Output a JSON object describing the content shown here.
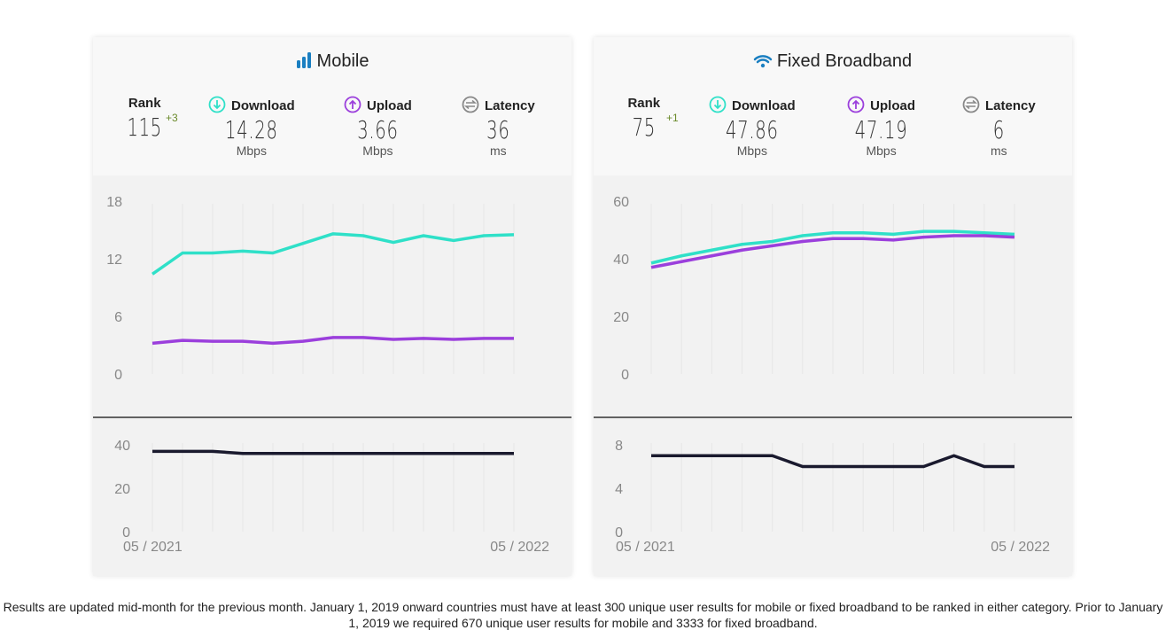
{
  "cards": [
    {
      "title": "Mobile",
      "icon": "signal-bars-icon",
      "rank_label": "Rank",
      "rank": "115",
      "rank_change": "+3",
      "download_label": "Download",
      "download": "14.28",
      "download_unit": "Mbps",
      "upload_label": "Upload",
      "upload": "3.66",
      "upload_unit": "Mbps",
      "latency_label": "Latency",
      "latency": "36",
      "latency_unit": "ms"
    },
    {
      "title": "Fixed Broadband",
      "icon": "wifi-icon",
      "rank_label": "Rank",
      "rank": "75",
      "rank_change": "+1",
      "download_label": "Download",
      "download": "47.86",
      "download_unit": "Mbps",
      "upload_label": "Upload",
      "upload": "47.19",
      "upload_unit": "Mbps",
      "latency_label": "Latency",
      "latency": "6",
      "latency_unit": "ms"
    }
  ],
  "colors": {
    "download": "#2fe0c8",
    "upload": "#9b3fdc",
    "latency": "#1a1a2e",
    "mobile_icon": "#1a7fc1"
  },
  "chart_data": [
    {
      "type": "line",
      "x_labels": [
        "05 / 2021",
        "05 / 2022"
      ],
      "ylim": [
        0,
        18
      ],
      "yticks": [
        0,
        6,
        12,
        18
      ],
      "series": [
        {
          "key": "download",
          "values": [
            10.4,
            12.6,
            12.6,
            12.8,
            12.6,
            13.6,
            14.6,
            14.4,
            13.7,
            14.4,
            13.9,
            14.4,
            14.5
          ]
        },
        {
          "key": "upload",
          "values": [
            3.2,
            3.5,
            3.4,
            3.4,
            3.2,
            3.4,
            3.8,
            3.8,
            3.6,
            3.7,
            3.6,
            3.7,
            3.7
          ]
        }
      ],
      "latency": {
        "ylim": [
          0,
          40
        ],
        "yticks": [
          0,
          20,
          40
        ],
        "values": [
          37,
          37,
          37,
          36,
          36,
          36,
          36,
          36,
          36,
          36,
          36,
          36,
          36
        ]
      }
    },
    {
      "type": "line",
      "x_labels": [
        "05 / 2021",
        "05 / 2022"
      ],
      "ylim": [
        0,
        60
      ],
      "yticks": [
        0,
        20,
        40,
        60
      ],
      "series": [
        {
          "key": "download",
          "values": [
            38.5,
            41,
            43,
            45,
            46,
            48,
            49,
            49,
            48.5,
            49.5,
            49.5,
            49,
            48.5
          ]
        },
        {
          "key": "upload",
          "values": [
            37,
            39,
            41,
            43,
            44.5,
            46,
            47,
            47,
            46.5,
            47.5,
            48,
            48,
            47.5
          ]
        }
      ],
      "latency": {
        "ylim": [
          0,
          8
        ],
        "yticks": [
          0,
          4,
          8
        ],
        "values": [
          7,
          7,
          7,
          7,
          7,
          6,
          6,
          6,
          6,
          6,
          7,
          6,
          6
        ]
      }
    }
  ],
  "footnote": "Results are updated mid-month for the previous month. January 1, 2019 onward countries must have at least 300 unique user results for mobile or fixed broadband to be ranked in either category. Prior to January 1, 2019 we required 670 unique user results for mobile and 3333 for fixed broadband."
}
